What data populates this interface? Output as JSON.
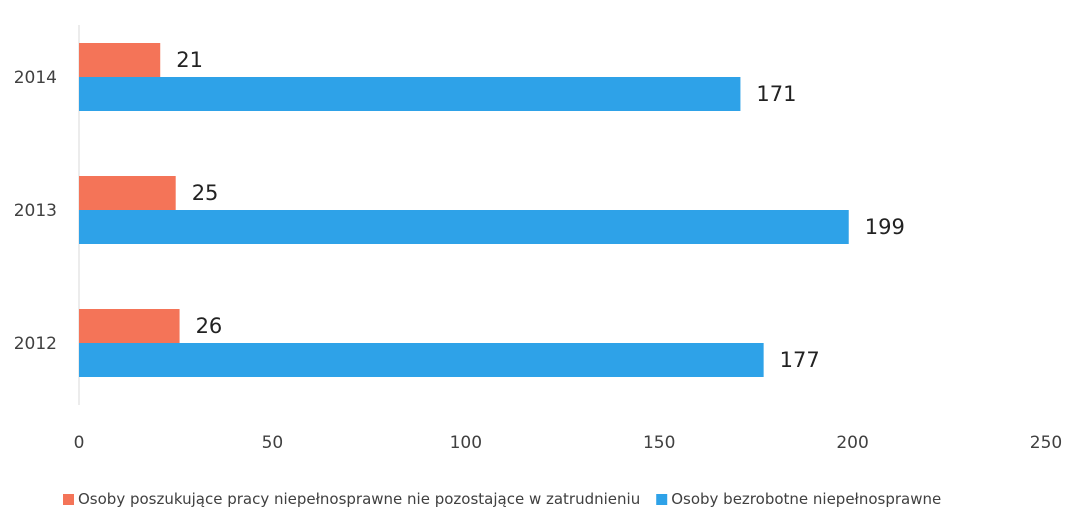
{
  "chart_data": {
    "type": "bar",
    "orientation": "horizontal",
    "categories": [
      "2014",
      "2013",
      "2012"
    ],
    "series": [
      {
        "name": "Osoby poszukujące pracy niepełnosprawne nie pozostające w zatrudnieniu",
        "color": "#f47458",
        "values": [
          21,
          25,
          26
        ]
      },
      {
        "name": "Osoby bezrobotne niepełnosprawne",
        "color": "#2ea2e8",
        "values": [
          171,
          199,
          177
        ]
      }
    ],
    "xlim": [
      0,
      250
    ],
    "x_ticks": [
      "0",
      "50",
      "100",
      "150",
      "200",
      "250"
    ],
    "data_labels": [
      [
        "21",
        "25",
        "26"
      ],
      [
        "171",
        "199",
        "177"
      ]
    ],
    "grid": false,
    "legend_position": "bottom"
  }
}
